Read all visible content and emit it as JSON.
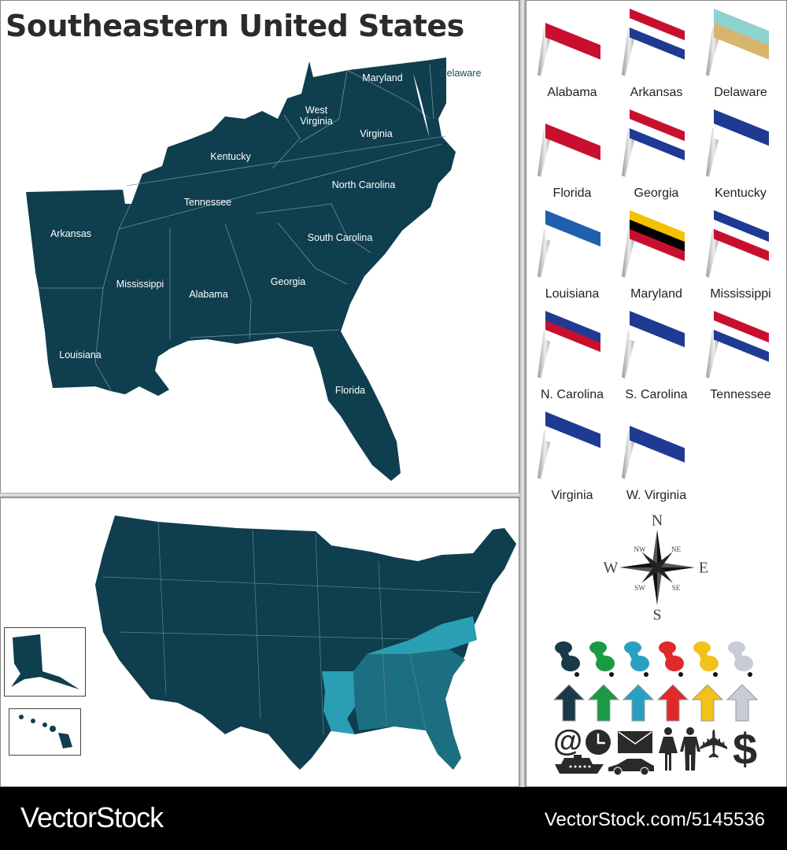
{
  "title": "Southeastern United States",
  "states": {
    "maryland": "Maryland",
    "delaware": "Delaware",
    "west_virginia": "West Virginia",
    "virginia": "Virginia",
    "kentucky": "Kentucky",
    "north_carolina": "North Carolina",
    "tennessee": "Tennessee",
    "arkansas": "Arkansas",
    "south_carolina": "South Carolina",
    "mississippi": "Mississippi",
    "alabama": "Alabama",
    "georgia": "Georgia",
    "louisiana": "Louisiana",
    "florida": "Florida"
  },
  "flags": [
    {
      "label": "Alabama",
      "colors": [
        "#ffffff",
        "#c8102e"
      ]
    },
    {
      "label": "Arkansas",
      "colors": [
        "#c8102e",
        "#ffffff",
        "#1f3a93"
      ]
    },
    {
      "label": "Delaware",
      "colors": [
        "#8ed3d0",
        "#d7b56d"
      ]
    },
    {
      "label": "Florida",
      "colors": [
        "#ffffff",
        "#c8102e"
      ]
    },
    {
      "label": "Georgia",
      "colors": [
        "#c8102e",
        "#ffffff",
        "#1f3a93"
      ]
    },
    {
      "label": "Kentucky",
      "colors": [
        "#1f3a93",
        "#ffffff"
      ]
    },
    {
      "label": "Louisiana",
      "colors": [
        "#1f5fae",
        "#ffffff"
      ]
    },
    {
      "label": "Maryland",
      "colors": [
        "#f2c200",
        "#000000",
        "#c8102e"
      ]
    },
    {
      "label": "Mississippi",
      "colors": [
        "#1f3a93",
        "#ffffff",
        "#c8102e"
      ]
    },
    {
      "label": "N. Carolina",
      "colors": [
        "#1f3a93",
        "#c8102e",
        "#ffffff"
      ]
    },
    {
      "label": "S. Carolina",
      "colors": [
        "#1f3a93",
        "#ffffff"
      ]
    },
    {
      "label": "Tennessee",
      "colors": [
        "#c8102e",
        "#ffffff",
        "#1f3a93"
      ]
    },
    {
      "label": "Virginia",
      "colors": [
        "#1f3a93",
        "#ffffff"
      ]
    },
    {
      "label": "W. Virginia",
      "colors": [
        "#ffffff",
        "#1f3a93"
      ]
    }
  ],
  "compass": {
    "n": "N",
    "s": "S",
    "e": "E",
    "w": "W",
    "ne": "NE",
    "nw": "NW",
    "se": "SE",
    "sw": "SW"
  },
  "pin_colors": [
    "#1a3a4a",
    "#1a9a44",
    "#2aa0c0",
    "#e02a2a",
    "#f2c21a",
    "#c8ccd4"
  ],
  "icons": [
    "at-sign",
    "clock",
    "envelope",
    "woman",
    "man",
    "airplane",
    "dollar",
    "ship",
    "car"
  ],
  "icon_glyphs": {
    "at": "@",
    "dollar": "$"
  },
  "map_colors": {
    "land": "#0f3e4e",
    "highlight_light": "#2a9fb3",
    "highlight_mid": "#1b6f80"
  },
  "footer": {
    "brand": "VectorStock",
    "url": "VectorStock.com/5145536"
  }
}
